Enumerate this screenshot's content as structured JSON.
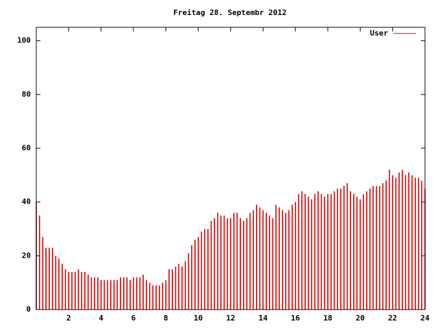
{
  "chart_data": {
    "type": "impulse",
    "title": "Freitag 28. Septembr 2012",
    "series": [
      {
        "name": "User",
        "color": "#cc0000",
        "x": [
          0,
          0.2,
          0.4,
          0.6,
          0.8,
          1,
          1.2,
          1.4,
          1.6,
          1.8,
          2,
          2.2,
          2.4,
          2.6,
          2.8,
          3,
          3.2,
          3.4,
          3.6,
          3.8,
          4,
          4.2,
          4.4,
          4.6,
          4.8,
          5,
          5.2,
          5.4,
          5.6,
          5.8,
          6,
          6.2,
          6.4,
          6.6,
          6.8,
          7,
          7.2,
          7.4,
          7.6,
          7.8,
          8,
          8.2,
          8.4,
          8.6,
          8.8,
          9,
          9.2,
          9.4,
          9.6,
          9.8,
          10,
          10.2,
          10.4,
          10.6,
          10.8,
          11,
          11.2,
          11.4,
          11.6,
          11.8,
          12,
          12.2,
          12.4,
          12.6,
          12.8,
          13,
          13.2,
          13.4,
          13.6,
          13.8,
          14,
          14.2,
          14.4,
          14.6,
          14.8,
          15,
          15.2,
          15.4,
          15.6,
          15.8,
          16,
          16.2,
          16.4,
          16.6,
          16.8,
          17,
          17.2,
          17.4,
          17.6,
          17.8,
          18,
          18.2,
          18.4,
          18.6,
          18.8,
          19,
          19.2,
          19.4,
          19.6,
          19.8,
          20,
          20.2,
          20.4,
          20.6,
          20.8,
          21,
          21.2,
          21.4,
          21.6,
          21.8,
          22,
          22.2,
          22.4,
          22.6,
          22.8,
          23,
          23.2,
          23.4,
          23.6,
          23.8,
          24
        ],
        "values": [
          40,
          35,
          27,
          23,
          23,
          23,
          20,
          19,
          17,
          15,
          14,
          14,
          14,
          15,
          14,
          14,
          13,
          12,
          12,
          12,
          11,
          11,
          11,
          11,
          11,
          11,
          12,
          12,
          12,
          11,
          12,
          12,
          12,
          13,
          11,
          10,
          9,
          9,
          9,
          10,
          11,
          15,
          15,
          16,
          17,
          16,
          18,
          21,
          24,
          26,
          27,
          29,
          30,
          30,
          33,
          34,
          36,
          35,
          35,
          34,
          34,
          36,
          36,
          34,
          33,
          34,
          36,
          37,
          39,
          38,
          37,
          36,
          35,
          34,
          39,
          38,
          37,
          36,
          37,
          39,
          40,
          43,
          44,
          43,
          42,
          41,
          43,
          44,
          43,
          42,
          43,
          43,
          44,
          45,
          45,
          46,
          47,
          44,
          43,
          42,
          41,
          43,
          44,
          45,
          46,
          46,
          46,
          47,
          48,
          52,
          50,
          49,
          51,
          52,
          50,
          51,
          50,
          49,
          49,
          48,
          45
        ]
      }
    ],
    "xlim": [
      0,
      24
    ],
    "xticks": [
      2,
      4,
      6,
      8,
      10,
      12,
      14,
      16,
      18,
      20,
      22,
      24
    ],
    "ylim": [
      0,
      105
    ],
    "yticks": [
      0,
      20,
      40,
      60,
      80,
      100
    ],
    "legend": "top-right"
  }
}
